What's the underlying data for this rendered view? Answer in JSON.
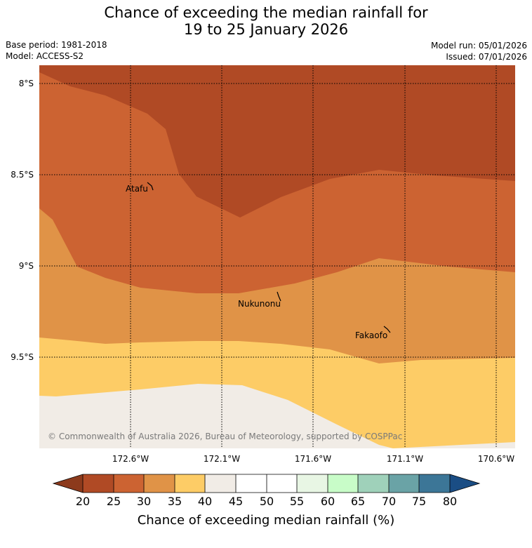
{
  "title": {
    "line1": "Chance of exceeding the median rainfall for",
    "line2": "19 to 25 January 2026"
  },
  "meta": {
    "base_period": "Base period: 1981-2018",
    "model": "Model: ACCESS-S2",
    "model_run": "Model run: 05/01/2026",
    "issued": "Issued: 07/01/2026"
  },
  "map": {
    "lat_labels": [
      "8°S",
      "8.5°S",
      "9°S",
      "9.5°S"
    ],
    "lon_labels": [
      "172.6°W",
      "172.1°W",
      "171.6°W",
      "171.1°W",
      "170.6°W"
    ],
    "places": [
      "Atafu",
      "Nukunonu",
      "Fakaofo"
    ],
    "copyright": "© Commonwealth of Australia 2026, Bureau of Meteorology, supported by COSPPac"
  },
  "colorbar": {
    "ticks": [
      "20",
      "25",
      "30",
      "35",
      "40",
      "45",
      "50",
      "55",
      "60",
      "65",
      "70",
      "75",
      "80"
    ],
    "colors": {
      "below20": "#8c3a1c",
      "c20_25": "#b04a25",
      "c25_30": "#cc6332",
      "c30_35": "#e09347",
      "c35_40": "#fdcc66",
      "c40_45": "#f1ece6",
      "c45_55": "#ffffff",
      "c55_60": "#e8f6e4",
      "c60_65": "#c8fcc8",
      "c65_70": "#9fd1ba",
      "c70_75": "#6aa3a6",
      "c75_80": "#3c7697",
      "above80": "#1a4d84"
    },
    "label": "Chance of exceeding median rainfall (%)"
  }
}
